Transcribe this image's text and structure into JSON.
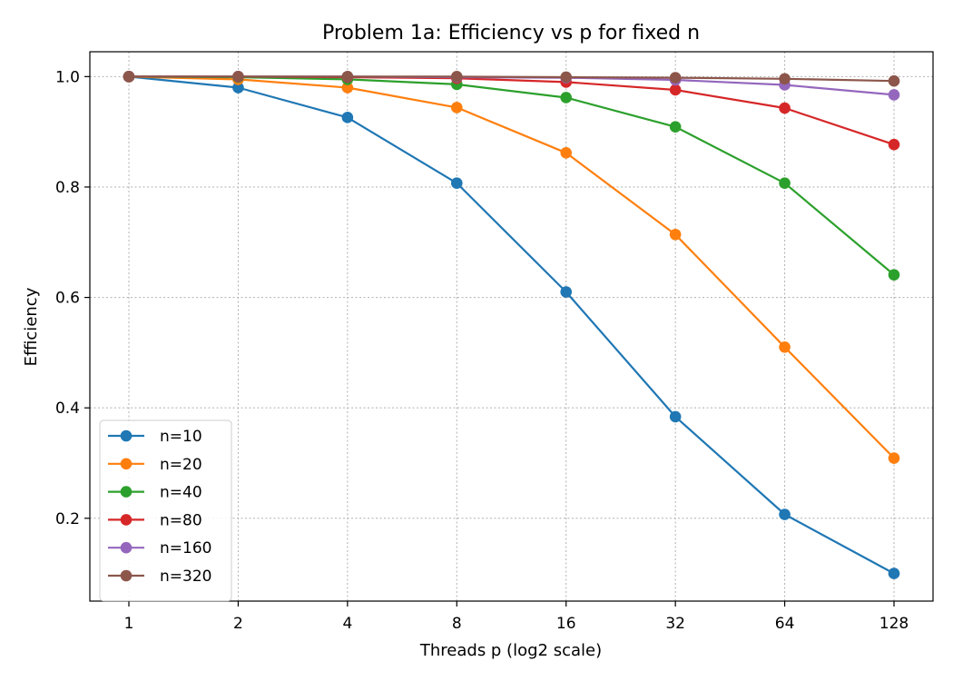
{
  "chart_data": {
    "type": "line",
    "title": "Problem 1a: Efficiency vs p for fixed n",
    "xlabel": "Threads p (log2 scale)",
    "ylabel": "Efficiency",
    "x_scale": "log2",
    "x": [
      1,
      2,
      4,
      8,
      16,
      32,
      64,
      128
    ],
    "x_tick_labels": [
      "1",
      "2",
      "4",
      "8",
      "16",
      "32",
      "64",
      "128"
    ],
    "ylim": [
      0.05,
      1.045
    ],
    "y_ticks": [
      0.2,
      0.4,
      0.6,
      0.8,
      1.0
    ],
    "y_tick_labels": [
      "0.2",
      "0.4",
      "0.6",
      "0.8",
      "1.0"
    ],
    "grid": true,
    "legend_position": "lower-left",
    "series": [
      {
        "name": "n=10",
        "color": "#1f77b4",
        "values": [
          1.0,
          0.98,
          0.926,
          0.807,
          0.61,
          0.384,
          0.207,
          0.1
        ]
      },
      {
        "name": "n=20",
        "color": "#ff7f0e",
        "values": [
          1.0,
          0.995,
          0.98,
          0.944,
          0.862,
          0.714,
          0.51,
          0.309
        ]
      },
      {
        "name": "n=40",
        "color": "#2ca02c",
        "values": [
          1.0,
          0.999,
          0.995,
          0.986,
          0.962,
          0.909,
          0.807,
          0.641
        ]
      },
      {
        "name": "n=80",
        "color": "#d62728",
        "values": [
          1.0,
          1.0,
          0.999,
          0.997,
          0.99,
          0.976,
          0.943,
          0.877
        ]
      },
      {
        "name": "n=160",
        "color": "#9467bd",
        "values": [
          1.0,
          1.0,
          1.0,
          0.999,
          0.998,
          0.994,
          0.985,
          0.967
        ]
      },
      {
        "name": "n=320",
        "color": "#8c564b",
        "values": [
          1.0,
          1.0,
          1.0,
          1.0,
          0.999,
          0.998,
          0.996,
          0.992
        ]
      }
    ]
  }
}
